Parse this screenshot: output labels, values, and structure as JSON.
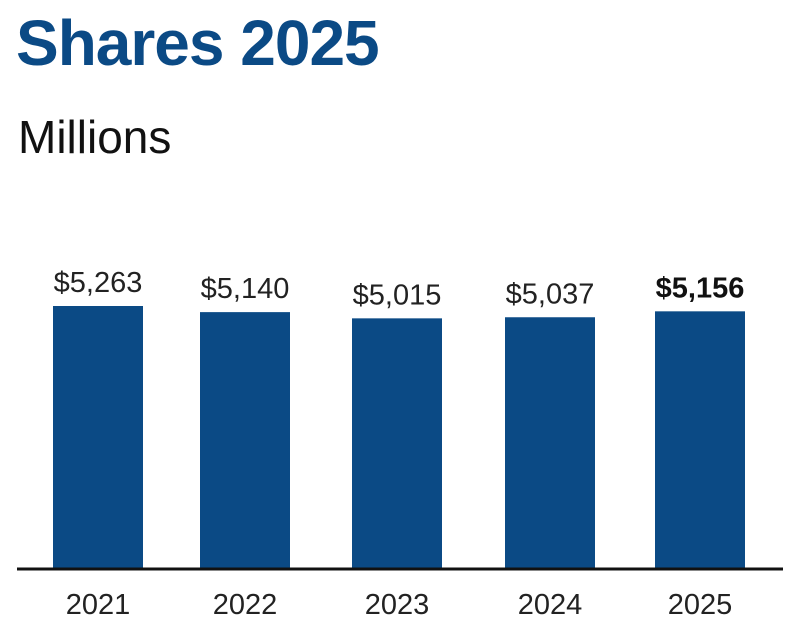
{
  "chart_data": {
    "type": "bar",
    "title": "Shares 2025",
    "subtitle": "Millions",
    "categories": [
      "2021",
      "2022",
      "2023",
      "2024",
      "2025"
    ],
    "values": [
      5263,
      5140,
      5015,
      5037,
      5156
    ],
    "data_labels": [
      "$5,263",
      "$5,140",
      "$5,015",
      "$5,037",
      "$5,156"
    ],
    "highlight_index": 4,
    "bar_color": "#0b4a85",
    "grid": false,
    "xlabel": "",
    "ylabel": ""
  }
}
